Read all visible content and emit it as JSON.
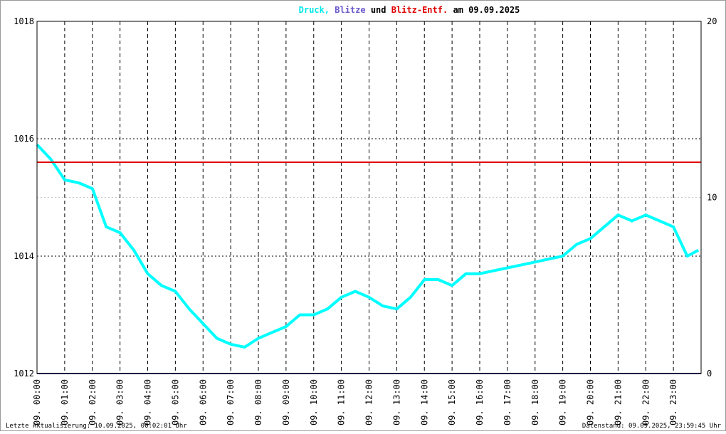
{
  "chart_data": {
    "type": "line",
    "title_parts": [
      {
        "text": "Druck,",
        "color": "#00e8e8"
      },
      {
        "text": "Blitze",
        "color": "#6a5acd"
      },
      {
        "text": "und",
        "color": "#000000"
      },
      {
        "text": "Blitz-Entf.",
        "color": "#e00000"
      },
      {
        "text": "am 09.09.2025",
        "color": "#000000"
      }
    ],
    "xlim": [
      0,
      24
    ],
    "xticks": [
      {
        "value": 0,
        "label": "09. 00:00"
      },
      {
        "value": 1,
        "label": "09. 01:00"
      },
      {
        "value": 2,
        "label": "09. 02:00"
      },
      {
        "value": 3,
        "label": "09. 03:00"
      },
      {
        "value": 4,
        "label": "09. 04:00"
      },
      {
        "value": 5,
        "label": "09. 05:00"
      },
      {
        "value": 6,
        "label": "09. 06:00"
      },
      {
        "value": 7,
        "label": "09. 07:00"
      },
      {
        "value": 8,
        "label": "09. 08:00"
      },
      {
        "value": 9,
        "label": "09. 09:00"
      },
      {
        "value": 10,
        "label": "09. 10:00"
      },
      {
        "value": 11,
        "label": "09. 11:00"
      },
      {
        "value": 12,
        "label": "09. 12:00"
      },
      {
        "value": 13,
        "label": "09. 13:00"
      },
      {
        "value": 14,
        "label": "09. 14:00"
      },
      {
        "value": 15,
        "label": "09. 15:00"
      },
      {
        "value": 16,
        "label": "09. 16:00"
      },
      {
        "value": 17,
        "label": "09. 17:00"
      },
      {
        "value": 18,
        "label": "09. 18:00"
      },
      {
        "value": 19,
        "label": "09. 19:00"
      },
      {
        "value": 20,
        "label": "09. 20:00"
      },
      {
        "value": 21,
        "label": "09. 21:00"
      },
      {
        "value": 22,
        "label": "09. 22:00"
      },
      {
        "value": 23,
        "label": "09. 23:00"
      }
    ],
    "ylim": [
      1012,
      1018
    ],
    "yticks": [
      1012,
      1014,
      1016,
      1018
    ],
    "y2lim": [
      0,
      20
    ],
    "y2ticks": [
      0,
      10,
      20
    ],
    "series": [
      {
        "color": "#00ffff",
        "axis": "y",
        "x": [
          0,
          0.5,
          1,
          1.5,
          2,
          2.5,
          3,
          3.5,
          4,
          4.5,
          5,
          5.5,
          6,
          6.5,
          7,
          7.5,
          8,
          8.5,
          9,
          9.5,
          10,
          10.5,
          11,
          11.5,
          12,
          12.5,
          13,
          13.5,
          14,
          14.5,
          15,
          15.5,
          16,
          16.5,
          17,
          17.5,
          18,
          18.5,
          19,
          19.5,
          20,
          20.5,
          21,
          21.5,
          22,
          22.5,
          23,
          23.5,
          23.9
        ],
        "values": [
          1015.9,
          1015.65,
          1015.3,
          1015.25,
          1015.15,
          1014.5,
          1014.4,
          1014.1,
          1013.7,
          1013.5,
          1013.4,
          1013.1,
          1012.85,
          1012.6,
          1012.5,
          1012.45,
          1012.6,
          1012.7,
          1012.8,
          1013.0,
          1013.0,
          1013.1,
          1013.3,
          1013.4,
          1013.3,
          1013.15,
          1013.1,
          1013.3,
          1013.6,
          1013.6,
          1013.5,
          1013.7,
          1013.7,
          1013.75,
          1013.8,
          1013.85,
          1013.9,
          1013.95,
          1014.0,
          1014.2,
          1014.3,
          1014.5,
          1014.7,
          1014.6,
          1014.7,
          1014.6,
          1014.5,
          1014.0,
          1014.1
        ]
      },
      {
        "color": "#000080",
        "axis": "y2",
        "x": [
          0,
          24
        ],
        "values": [
          0,
          0
        ]
      },
      {
        "color": "#e00000",
        "axis": "y2",
        "x": [
          0,
          24
        ],
        "values": [
          12,
          12
        ]
      }
    ],
    "footer_left": "Letzte Aktualisierung: 10.09.2025, 00:02:01 Uhr",
    "footer_right": "Datenstand: 09.09.2025, 23:59:45 Uhr"
  }
}
